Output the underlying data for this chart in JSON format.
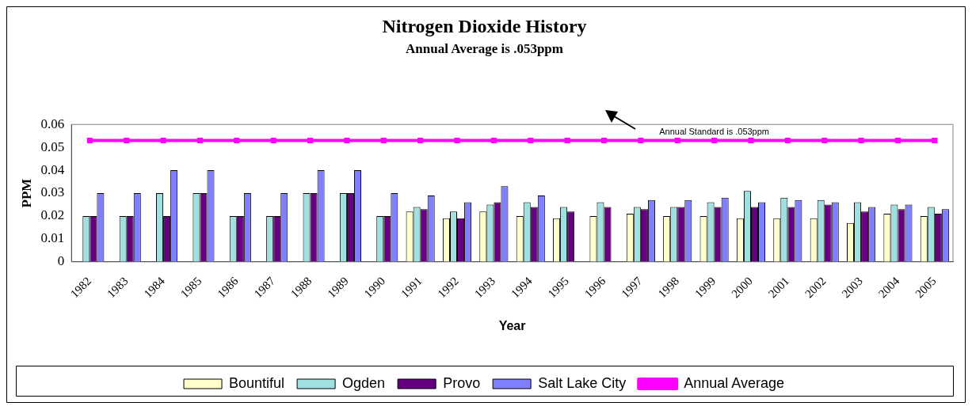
{
  "chart_data": {
    "type": "bar",
    "title": "Nitrogen Dioxide History",
    "subtitle": "Annual Average is .053ppm",
    "xlabel": "Year",
    "ylabel": "PPM",
    "categories": [
      "1982",
      "1983",
      "1984",
      "1985",
      "1986",
      "1987",
      "1988",
      "1989",
      "1990",
      "1991",
      "1992",
      "1993",
      "1994",
      "1995",
      "1996",
      "1997",
      "1998",
      "1999",
      "2000",
      "2001",
      "2002",
      "2003",
      "2004",
      "2005"
    ],
    "series": [
      {
        "name": "Bountiful",
        "color": "#ffffcc",
        "values": [
          null,
          null,
          null,
          null,
          null,
          null,
          null,
          null,
          null,
          0.022,
          0.019,
          0.022,
          0.02,
          0.019,
          0.02,
          0.021,
          0.02,
          0.02,
          0.019,
          0.019,
          0.019,
          0.017,
          0.021,
          0.02
        ]
      },
      {
        "name": "Ogden",
        "color": "#a0e0e0",
        "values": [
          0.02,
          0.02,
          0.03,
          0.03,
          0.02,
          0.02,
          0.03,
          0.03,
          0.02,
          0.024,
          0.022,
          0.025,
          0.026,
          0.024,
          0.026,
          0.024,
          0.024,
          0.026,
          0.031,
          0.028,
          0.027,
          0.026,
          0.025,
          0.024
        ]
      },
      {
        "name": "Provo",
        "color": "#660080",
        "values": [
          0.02,
          0.02,
          0.02,
          0.03,
          0.02,
          0.02,
          0.03,
          0.03,
          0.02,
          0.023,
          0.019,
          0.026,
          0.024,
          0.022,
          0.024,
          0.023,
          0.024,
          0.024,
          0.024,
          0.024,
          0.025,
          0.022,
          0.023,
          0.021
        ]
      },
      {
        "name": "Salt Lake City",
        "color": "#8080ff",
        "values": [
          0.03,
          0.03,
          0.04,
          0.04,
          0.03,
          0.03,
          0.04,
          0.04,
          0.03,
          0.029,
          0.026,
          0.033,
          0.029,
          null,
          null,
          0.027,
          0.027,
          0.028,
          0.026,
          0.027,
          0.026,
          0.024,
          0.025,
          0.023
        ]
      },
      {
        "name": "Annual Average",
        "type": "line",
        "color": "#ff00ff",
        "marker": "square",
        "line_style": "solid",
        "values": [
          0.053,
          0.053,
          0.053,
          0.053,
          0.053,
          0.053,
          0.053,
          0.053,
          0.053,
          0.053,
          0.053,
          0.053,
          0.053,
          0.053,
          0.053,
          0.053,
          0.053,
          0.053,
          0.053,
          0.053,
          0.053,
          0.053,
          0.053,
          0.053
        ]
      }
    ],
    "ylim": [
      0,
      0.06
    ],
    "yticks": [
      0,
      0.01,
      0.02,
      0.03,
      0.04,
      0.05,
      0.06
    ],
    "legend": "bottom",
    "annotations": [
      {
        "text": "Annual Standard is .053ppm",
        "x": "1999",
        "y": 0.053
      }
    ]
  }
}
